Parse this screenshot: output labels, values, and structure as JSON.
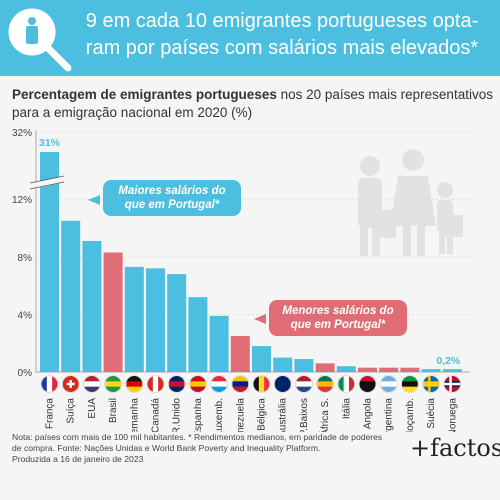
{
  "header": {
    "title": "9 em cada 10 emigrantes portugueses opta-ram por países com salários mais elevados*",
    "icon": "migrant-magnifier-icon"
  },
  "subtitle": {
    "bold": "Percentagem de emigrantes portugueses",
    "rest": " nos 20 países mais representativos para a emigração nacional em 2020 (%)"
  },
  "callouts": {
    "higher": "Maiores salários do que em Portugal*",
    "lower": "Menores salários do que em Portugal*"
  },
  "footnote": {
    "line1": "Nota: países com mais de 100 mil habitantes. * Rendimentos medianos, em paridade de poderes",
    "line2": "de compra. Fonte: Nações Unidas e World Bank Poverty and Inequality Platform.",
    "line3": "Produzida a 16 de janeiro de 2023"
  },
  "logo": "+factos",
  "colors": {
    "higher": "#4cbfe0",
    "lower": "#e06d75",
    "header": "#4cbfe0"
  },
  "chart_data": {
    "type": "bar",
    "categories": [
      "França",
      "Suíça",
      "EUA",
      "Brasil",
      "Alemanha",
      "Canadá",
      "R.Unido",
      "Espanha",
      "Luxemb.",
      "Venezuela",
      "Bélgica",
      "Austrália",
      "P.Baixos",
      "África S.",
      "Itália",
      "Angola",
      "Argentina",
      "Moçamb.",
      "Suécia",
      "Noruega"
    ],
    "values": [
      31,
      10.5,
      9.1,
      8.3,
      7.3,
      7.2,
      6.8,
      5.2,
      3.9,
      2.5,
      1.8,
      1.0,
      0.9,
      0.6,
      0.4,
      0.3,
      0.3,
      0.3,
      0.2,
      0.2
    ],
    "higher_salary": [
      true,
      true,
      true,
      false,
      true,
      true,
      true,
      true,
      true,
      false,
      true,
      true,
      true,
      false,
      true,
      false,
      false,
      false,
      true,
      true
    ],
    "yticks": [
      "0%",
      "4%",
      "8%",
      "12%",
      "32%"
    ],
    "axis_break": true,
    "data_labels": {
      "first": "31%",
      "last": "0,2%"
    },
    "flags": [
      "flag-france",
      "flag-switzerland",
      "flag-usa",
      "flag-brazil",
      "flag-germany",
      "flag-canada",
      "flag-uk",
      "flag-spain",
      "flag-luxembourg",
      "flag-venezuela",
      "flag-belgium",
      "flag-australia",
      "flag-netherlands",
      "flag-south-africa",
      "flag-italy",
      "flag-angola",
      "flag-argentina",
      "flag-mozambique",
      "flag-sweden",
      "flag-norway"
    ]
  }
}
